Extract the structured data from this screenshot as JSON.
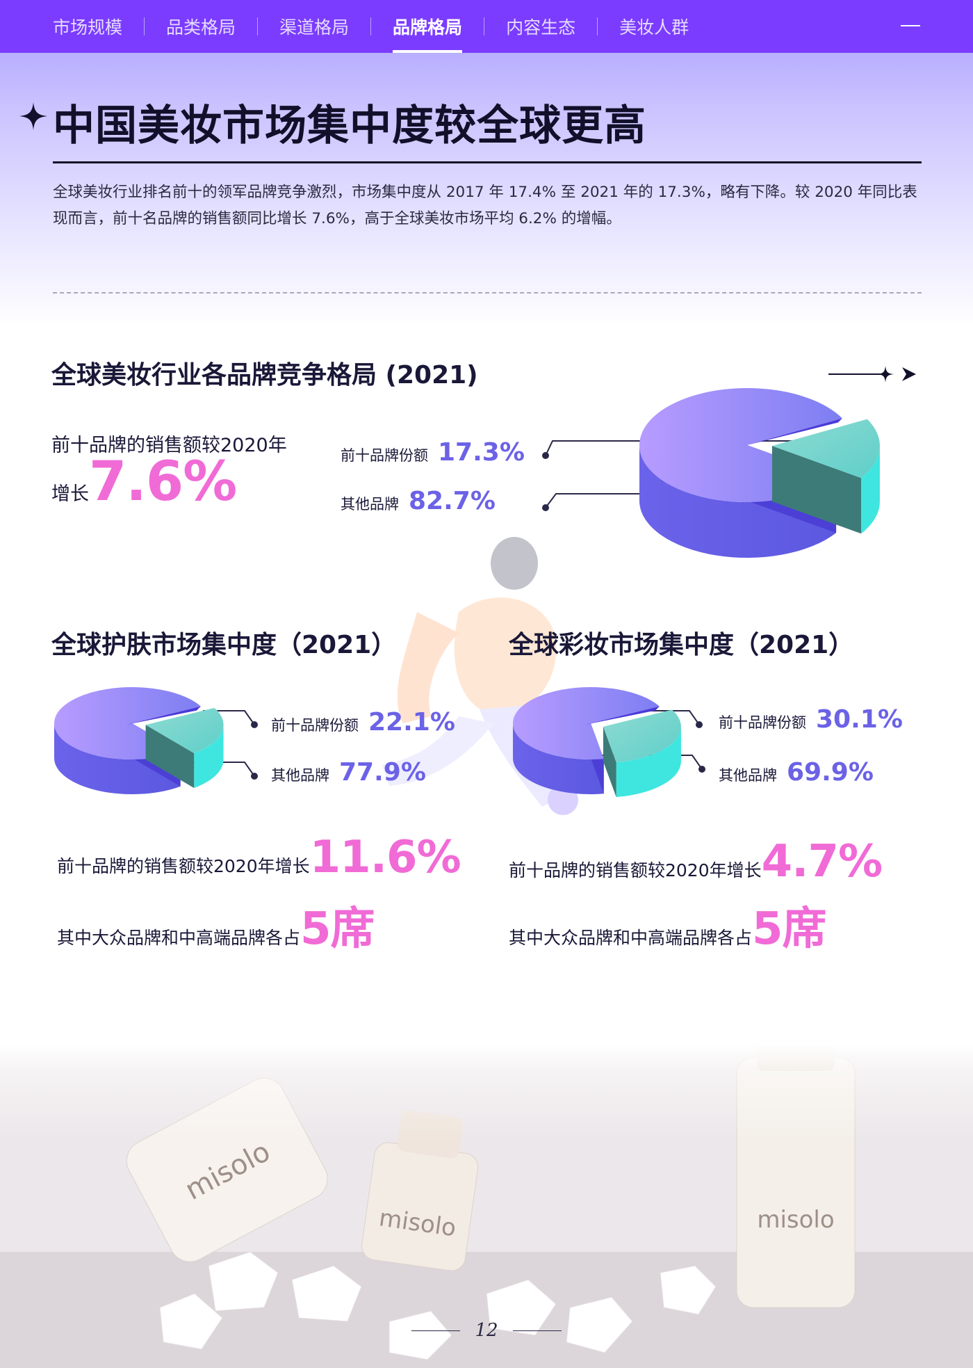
{
  "nav": {
    "tabs": [
      {
        "label": "市场规模",
        "active": false
      },
      {
        "label": "品类格局",
        "active": false
      },
      {
        "label": "渠道格局",
        "active": false
      },
      {
        "label": "品牌格局",
        "active": true
      },
      {
        "label": "内容生态",
        "active": false
      },
      {
        "label": "美妆人群",
        "active": false
      }
    ]
  },
  "heading": {
    "title": "中国美妆市场集中度较全球更高",
    "intro": "全球美妆行业排名前十的领军品牌竞争激烈，市场集中度从 2017 年 17.4% 至 2021 年的 17.3%，略有下降。较 2020 年同比表现而言，前十名品牌的销售额同比增长 7.6%，高于全球美妆市场平均 6.2% 的增幅。"
  },
  "global_section": {
    "title": "全球美妆行业各品牌竞争格局 (2021)",
    "growth_line1": "前十品牌的销售额较2020年",
    "growth_prefix": "增长",
    "growth_value": "7.6%",
    "top10_label": "前十品牌份额",
    "top10_value": "17.3%",
    "others_label": "其他品牌",
    "others_value": "82.7%"
  },
  "skincare_section": {
    "title": "全球护肤市场集中度（2021）",
    "top10_label": "前十品牌份额",
    "top10_value": "22.1%",
    "others_label": "其他品牌",
    "others_value": "77.9%",
    "growth_text": "前十品牌的销售额较2020年增长",
    "growth_value": "11.6%",
    "split_text": "其中大众品牌和中高端品牌各占",
    "split_value": "5席"
  },
  "makeup_section": {
    "title": "全球彩妆市场集中度（2021）",
    "top10_label": "前十品牌份额",
    "top10_value": "30.1%",
    "others_label": "其他品牌",
    "others_value": "69.9%",
    "growth_text": "前十品牌的销售额较2020年增长",
    "growth_value": "4.7%",
    "split_text": "其中大众品牌和中高端品牌各占",
    "split_value": "5席"
  },
  "photo": {
    "brand_text": "misolo"
  },
  "footer": {
    "page_number": "12"
  },
  "colors": {
    "nav_bg": "#7b3cff",
    "pink_accent": "#f06bd6",
    "value_blue": "#6b62e6",
    "pie_others": "#7a6df0",
    "pie_top10": "#6fd6cf"
  },
  "chart_data": [
    {
      "type": "pie",
      "title": "全球美妆行业各品牌竞争格局 (2021)",
      "categories": [
        "前十品牌份额",
        "其他品牌"
      ],
      "values": [
        17.3,
        82.7
      ]
    },
    {
      "type": "pie",
      "title": "全球护肤市场集中度（2021）",
      "categories": [
        "前十品牌份额",
        "其他品牌"
      ],
      "values": [
        22.1,
        77.9
      ]
    },
    {
      "type": "pie",
      "title": "全球彩妆市场集中度（2021）",
      "categories": [
        "前十品牌份额",
        "其他品牌"
      ],
      "values": [
        30.1,
        69.9
      ]
    }
  ]
}
